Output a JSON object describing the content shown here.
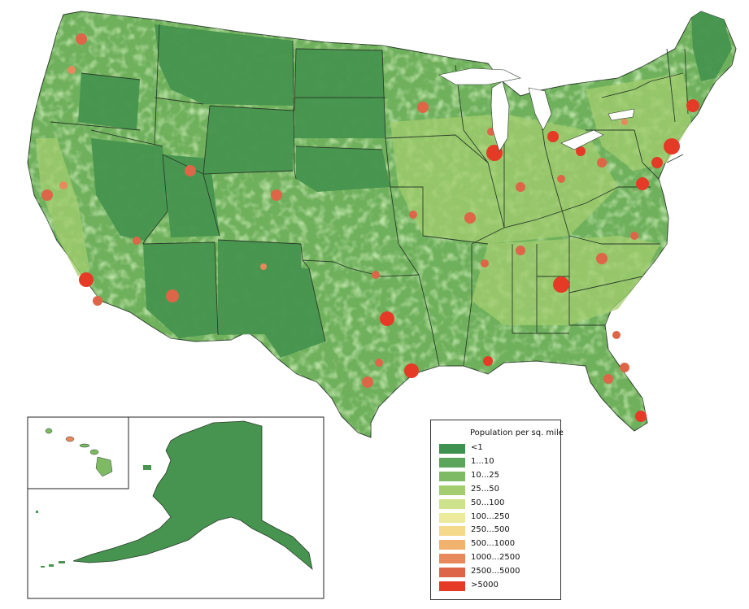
{
  "legend": {
    "title": "Population per sq. mile",
    "classes": [
      {
        "label": "<1",
        "color": "#3f9150"
      },
      {
        "label": "1...10",
        "color": "#5ba55d"
      },
      {
        "label": "10...25",
        "color": "#7dba63"
      },
      {
        "label": "25...50",
        "color": "#a3cd6f"
      },
      {
        "label": "50...100",
        "color": "#cde28a"
      },
      {
        "label": "100...250",
        "color": "#ecea9c"
      },
      {
        "label": "250...500",
        "color": "#f5d98a"
      },
      {
        "label": "500...1000",
        "color": "#f1b26f"
      },
      {
        "label": "1000...2500",
        "color": "#e7895c"
      },
      {
        "label": "2500...5000",
        "color": "#dd6648"
      },
      {
        "label": ">5000",
        "color": "#e53a26"
      }
    ]
  },
  "colors": {
    "state_border": "#2a3d2a",
    "inset_border": "#222222"
  }
}
